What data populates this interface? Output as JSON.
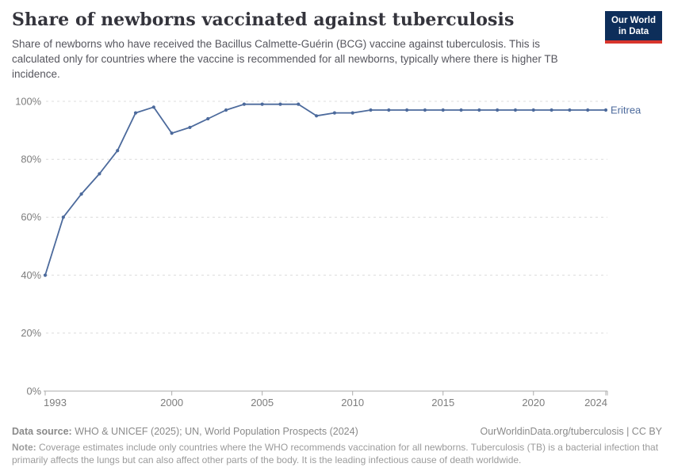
{
  "header": {
    "title": "Share of newborns vaccinated against tuberculosis",
    "subtitle": "Share of newborns who have received the Bacillus Calmette-Guérin (BCG) vaccine against tuberculosis. This is calculated only for countries where the vaccine is recommended for all newborns, typically where there is higher TB incidence.",
    "logo": {
      "line1": "Our World",
      "line2": "in Data",
      "bg_color": "#0d2e5a",
      "accent_color": "#d8352c"
    }
  },
  "chart_data": {
    "type": "line",
    "title": "Share of newborns vaccinated against tuberculosis",
    "x": [
      1993,
      1994,
      1995,
      1996,
      1997,
      1998,
      1999,
      2000,
      2001,
      2002,
      2003,
      2004,
      2005,
      2006,
      2007,
      2008,
      2009,
      2010,
      2011,
      2012,
      2013,
      2014,
      2015,
      2016,
      2017,
      2018,
      2019,
      2020,
      2021,
      2022,
      2023,
      2024
    ],
    "series": [
      {
        "name": "Eritrea",
        "color": "#4C6A9C",
        "values": [
          40,
          60,
          68,
          75,
          83,
          96,
          98,
          89,
          91,
          94,
          97,
          99,
          99,
          99,
          99,
          95,
          96,
          96,
          97,
          97,
          97,
          97,
          97,
          97,
          97,
          97,
          97,
          97,
          97,
          97,
          97,
          97
        ]
      }
    ],
    "xlabel": "",
    "ylabel": "",
    "ylim": [
      0,
      100
    ],
    "yticks": [
      {
        "value": 0,
        "label": "0%"
      },
      {
        "value": 20,
        "label": "20%"
      },
      {
        "value": 40,
        "label": "40%"
      },
      {
        "value": 60,
        "label": "60%"
      },
      {
        "value": 80,
        "label": "80%"
      },
      {
        "value": 100,
        "label": "100%"
      }
    ],
    "xticks": [
      1993,
      2000,
      2005,
      2010,
      2015,
      2020,
      2024
    ],
    "grid": "horizontal-dashed",
    "legend_position": "end-of-line-label",
    "colors": {
      "gridline": "#dcdcdc",
      "axis_line": "#ababab",
      "tick_label": "#7d7d7d"
    }
  },
  "footer": {
    "datasource_label": "Data source:",
    "datasource_text": " WHO & UNICEF (2025); UN, World Population Prospects (2024)",
    "attribution": "OurWorldinData.org/tuberculosis | CC BY",
    "note_label": "Note:",
    "note_text": " Coverage estimates include only countries where the WHO recommends vaccination for all newborns. Tuberculosis (TB) is a bacterial infection that primarily affects the lungs but can also affect other parts of the body. It is the leading infectious cause of death worldwide."
  }
}
